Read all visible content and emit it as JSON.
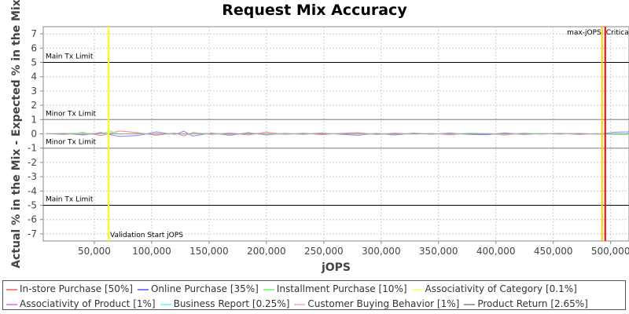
{
  "chart_data": {
    "type": "line",
    "title": "Request Mix Accuracy",
    "xlabel": "jOPS",
    "ylabel": "Actual % in the Mix - Expected % in the Mix",
    "xlim": [
      5500,
      516000
    ],
    "ylim": [
      -7.5,
      7.5
    ],
    "xticks": [
      50000,
      100000,
      150000,
      200000,
      250000,
      300000,
      350000,
      400000,
      450000,
      500000
    ],
    "xtick_labels": [
      "50,000",
      "100,000",
      "150,000",
      "200,000",
      "250,000",
      "300,000",
      "350,000",
      "400,000",
      "450,000",
      "500,000"
    ],
    "yticks": [
      7,
      6,
      5,
      4,
      3,
      2,
      1,
      0,
      -1,
      -2,
      -3,
      -4,
      -5,
      -6,
      -7
    ],
    "grid": true,
    "legend_position": "bottom",
    "horizontal_lines": [
      {
        "y": 5,
        "label": "Main Tx Limit",
        "color": "#000000"
      },
      {
        "y": 1,
        "label": "Minor Tx Limit",
        "color": "#808080"
      },
      {
        "y": -1,
        "label": "Minor Tx Limit",
        "color": "#808080"
      },
      {
        "y": -5,
        "label": "Main Tx Limit",
        "color": "#000000"
      }
    ],
    "vertical_lines": [
      {
        "x": 62400,
        "label": "Validation Start jOPS",
        "color": "#ffff00"
      },
      {
        "x": 492500,
        "label": "max-jOPS",
        "color": "#ffc800"
      },
      {
        "x": 495300,
        "label": "Critical-jOPS",
        "color": "#ff0000"
      }
    ],
    "x": [
      8000,
      24000,
      40000,
      56000,
      64000,
      72000,
      88000,
      104000,
      120000,
      128000,
      136000,
      152000,
      168000,
      184000,
      200000,
      216000,
      232000,
      248000,
      264000,
      280000,
      296000,
      312000,
      328000,
      344000,
      360000,
      376000,
      392000,
      408000,
      424000,
      440000,
      456000,
      472000,
      488000,
      504000,
      516000
    ],
    "series": [
      {
        "name": "In-store Purchase [50%]",
        "color": "#ff8080",
        "values": [
          0.02,
          -0.05,
          0.1,
          -0.12,
          0.05,
          0.2,
          0.08,
          -0.1,
          0.06,
          -0.15,
          0.1,
          -0.05,
          0.07,
          -0.08,
          0.12,
          -0.04,
          0.05,
          -0.06,
          0.04,
          0.08,
          -0.05,
          0.06,
          -0.03,
          0.04,
          -0.07,
          0.05,
          0.03,
          -0.08,
          0.06,
          -0.02,
          0.04,
          -0.05,
          0.02,
          -0.04,
          0.03
        ]
      },
      {
        "name": "Online Purchase [35%]",
        "color": "#8080ff",
        "values": [
          -0.01,
          0.04,
          -0.08,
          0.1,
          -0.06,
          -0.18,
          -0.12,
          0.14,
          -0.05,
          0.18,
          -0.16,
          0.06,
          -0.1,
          0.09,
          -0.08,
          0.05,
          -0.04,
          0.07,
          -0.03,
          -0.1,
          0.04,
          -0.08,
          0.05,
          -0.03,
          0.06,
          -0.04,
          -0.06,
          0.07,
          -0.05,
          0.03,
          -0.02,
          0.04,
          -0.03,
          0.12,
          0.14
        ]
      },
      {
        "name": "Installment Purchase [10%]",
        "color": "#80ff80",
        "values": [
          0.0,
          0.03,
          0.06,
          0.02,
          0.2,
          -0.02,
          0.03,
          -0.02,
          0.04,
          -0.03,
          0.05,
          0.02,
          -0.03,
          0.04,
          -0.05,
          0.03,
          -0.02,
          0.02,
          0.03,
          -0.02,
          0.02,
          0.01,
          -0.02,
          0.03,
          -0.01,
          0.05,
          0.02,
          -0.03,
          0.04,
          0.02,
          -0.01,
          0.03,
          -0.02,
          -0.05,
          -0.06
        ]
      },
      {
        "name": "Associativity of Category [0.1%]",
        "color": "#ffff80",
        "values": [
          0,
          0,
          0,
          0,
          0,
          0,
          0,
          0,
          0,
          0,
          0,
          0,
          0,
          0,
          0,
          0,
          0,
          0,
          0,
          0,
          0,
          0,
          0,
          0,
          0,
          0,
          0,
          0,
          0,
          0,
          0,
          0,
          0,
          0,
          0
        ]
      },
      {
        "name": "Associativity of Product [1%]",
        "color": "#ff80ff",
        "values": [
          0,
          0.01,
          -0.01,
          0,
          0.01,
          0,
          -0.01,
          0.01,
          0,
          -0.01,
          0,
          0.01,
          0,
          0,
          -0.01,
          0.01,
          0,
          0,
          0.01,
          0,
          -0.01,
          0,
          0.01,
          0,
          0,
          -0.01,
          0,
          0.01,
          0,
          0,
          0,
          0.01,
          0,
          0,
          0
        ]
      },
      {
        "name": "Business Report [0.25%]",
        "color": "#80ffff",
        "values": [
          0,
          0,
          0.01,
          0,
          0.01,
          0,
          0,
          -0.01,
          0,
          0,
          0.01,
          0,
          0,
          0,
          0,
          0.01,
          0,
          0,
          0,
          0,
          0,
          0,
          0,
          0.01,
          0,
          0,
          0,
          0,
          0,
          0,
          0,
          0,
          0,
          0,
          0
        ]
      },
      {
        "name": "Customer Buying Behavior [1%]",
        "color": "#ffc0c0",
        "values": [
          0,
          -0.01,
          0.01,
          0.02,
          -0.01,
          0,
          0.01,
          0,
          -0.02,
          0.01,
          0,
          -0.01,
          0.01,
          0,
          0.02,
          -0.01,
          0,
          0.01,
          0,
          -0.01,
          0,
          0.01,
          0,
          -0.01,
          0.01,
          0,
          0,
          0.01,
          -0.01,
          0,
          0.01,
          0,
          0,
          0,
          0
        ]
      },
      {
        "name": "Product Return [2.65%]",
        "color": "#a0a0a0",
        "values": [
          0,
          0.01,
          -0.02,
          0.01,
          0.02,
          -0.01,
          0.01,
          -0.02,
          0.02,
          0,
          -0.01,
          0.02,
          -0.01,
          0.01,
          0,
          -0.02,
          0.01,
          0,
          -0.01,
          0.02,
          0,
          -0.01,
          0.01,
          0,
          -0.02,
          0.01,
          0,
          0.01,
          0,
          -0.01,
          0.02,
          0,
          -0.01,
          0,
          0
        ]
      }
    ]
  }
}
